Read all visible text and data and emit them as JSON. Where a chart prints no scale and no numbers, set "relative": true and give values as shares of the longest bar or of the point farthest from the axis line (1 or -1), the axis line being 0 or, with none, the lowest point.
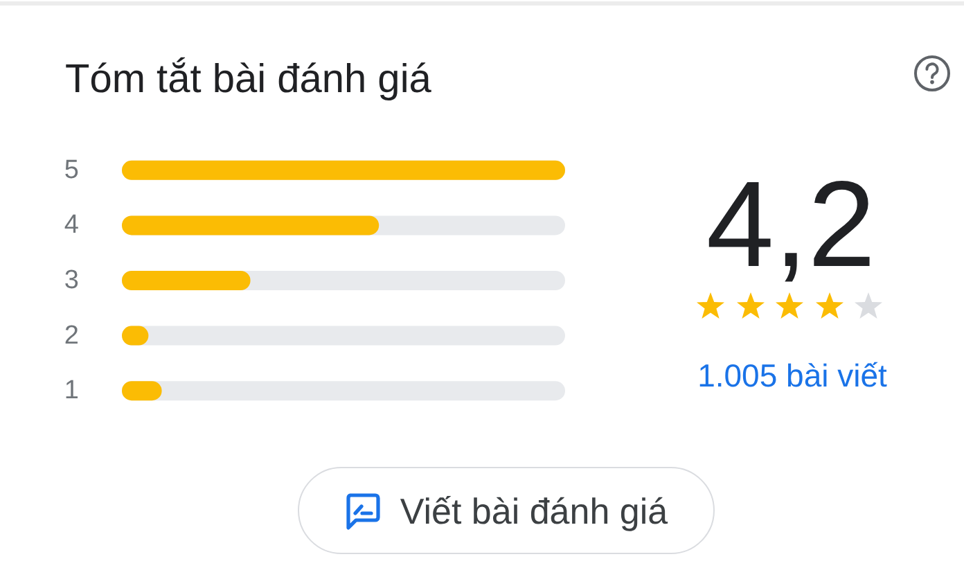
{
  "chart_data": {
    "type": "bar",
    "orientation": "horizontal",
    "relative": true,
    "title": "Tóm tắt bài đánh giá",
    "categories": [
      "5",
      "4",
      "3",
      "2",
      "1"
    ],
    "values": [
      1,
      0.58,
      0.29,
      0.06,
      0.09
    ],
    "color": "#fbbc04",
    "annotations": [
      "4,2",
      "1.005 bài viết",
      "Viết bài đánh giá"
    ]
  }
}
